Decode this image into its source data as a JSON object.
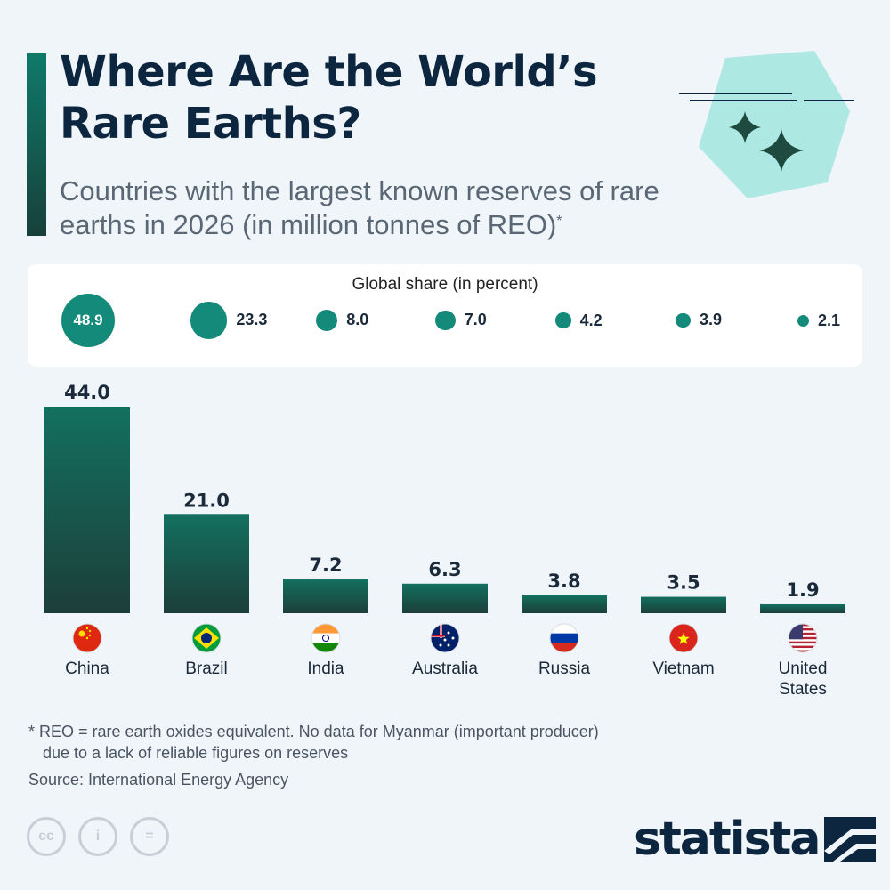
{
  "header": {
    "title": "Where Are the World’s Rare Earths?",
    "subtitle": "Countries with the largest known reserves of rare earths in 2026 (in million tonnes of REO)",
    "subtitle_mark": "*"
  },
  "share_panel": {
    "title": "Global share (in percent)",
    "items": [
      {
        "country": "China",
        "value": "48.9"
      },
      {
        "country": "Brazil",
        "value": "23.3"
      },
      {
        "country": "India",
        "value": "8.0"
      },
      {
        "country": "Australia",
        "value": "7.0"
      },
      {
        "country": "Russia",
        "value": "4.2"
      },
      {
        "country": "Vietnam",
        "value": "3.9"
      },
      {
        "country": "United States",
        "value": "2.1"
      }
    ]
  },
  "chart_data": {
    "type": "bar",
    "categories": [
      "China",
      "Brazil",
      "India",
      "Australia",
      "Russia",
      "Vietnam",
      "United States"
    ],
    "values": [
      44.0,
      21.0,
      7.2,
      6.3,
      3.8,
      3.5,
      1.9
    ],
    "value_labels": [
      "44.0",
      "21.0",
      "7.2",
      "6.3",
      "3.8",
      "3.5",
      "1.9"
    ],
    "global_share_percent": [
      48.9,
      23.3,
      8.0,
      7.0,
      4.2,
      3.9,
      2.1
    ],
    "bar_color_top": "#13705f",
    "bar_color_bottom": "#1c3e3a"
  },
  "flags": [
    "china-flag-icon",
    "brazil-flag-icon",
    "india-flag-icon",
    "australia-flag-icon",
    "russia-flag-icon",
    "vietnam-flag-icon",
    "united-states-flag-icon"
  ],
  "footer": {
    "footnote_line1": "* REO = rare earth oxides equivalent. No data for Myanmar (important producer)",
    "footnote_line2": "due to a lack of reliable figures on reserves",
    "source": "Source: International Energy Agency",
    "license_icons": [
      "cc",
      "i",
      "="
    ],
    "logo": "statista"
  },
  "colors": {
    "accent": "#148a7a",
    "title": "#0d2640",
    "background": "#f0f5f9"
  }
}
